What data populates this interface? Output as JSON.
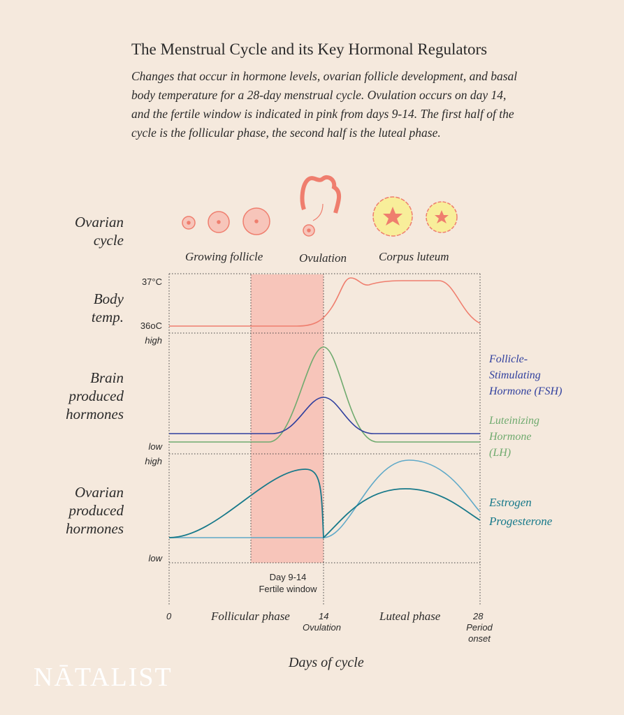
{
  "header": {
    "title": "The Menstrual Cycle and its Key Hormonal Regulators",
    "subtitle_lines": [
      "Changes that occur in hormone levels, ovarian follicle development, and basal",
      "body temperature for a 28-day menstrual cycle. Ovulation occurs on day 14,",
      "and the fertile window is indicated in pink from days 9-14. The first half of the",
      "cycle is the follicular phase, the second half is the luteal phase."
    ]
  },
  "ovarian_cycle": {
    "label_lines": [
      "Ovarian",
      "cycle"
    ],
    "stages": [
      "Growing follicle",
      "Ovulation",
      "Corpus luteum"
    ]
  },
  "body_temp": {
    "label_lines": [
      "Body",
      "temp."
    ],
    "high": "37°C",
    "low": "36oC"
  },
  "brain_hormones": {
    "label_lines": [
      "Brain",
      "produced",
      "hormones"
    ],
    "high": "high",
    "low": "low",
    "legend": [
      {
        "lines": [
          "Follicle-",
          "Stimulating",
          "Hormone (FSH)"
        ]
      },
      {
        "lines": [
          "Luteinizing",
          "Hormone",
          "(LH)"
        ]
      }
    ]
  },
  "ovarian_hormones": {
    "label_lines": [
      "Ovarian",
      "produced",
      "hormones"
    ],
    "high": "high",
    "low": "low",
    "legend": [
      "Estrogen",
      "Progesterone"
    ]
  },
  "fertile_window": {
    "lines": [
      "Day 9-14",
      "Fertile window"
    ]
  },
  "x_axis": {
    "ticks": [
      "0",
      "14",
      "28"
    ],
    "ovulation_note": "Ovulation",
    "period_note_lines": [
      "Period",
      "onset"
    ],
    "phases": [
      "Follicular phase",
      "Luteal phase"
    ],
    "title": "Days of cycle"
  },
  "brand": "NĀTALIST"
}
